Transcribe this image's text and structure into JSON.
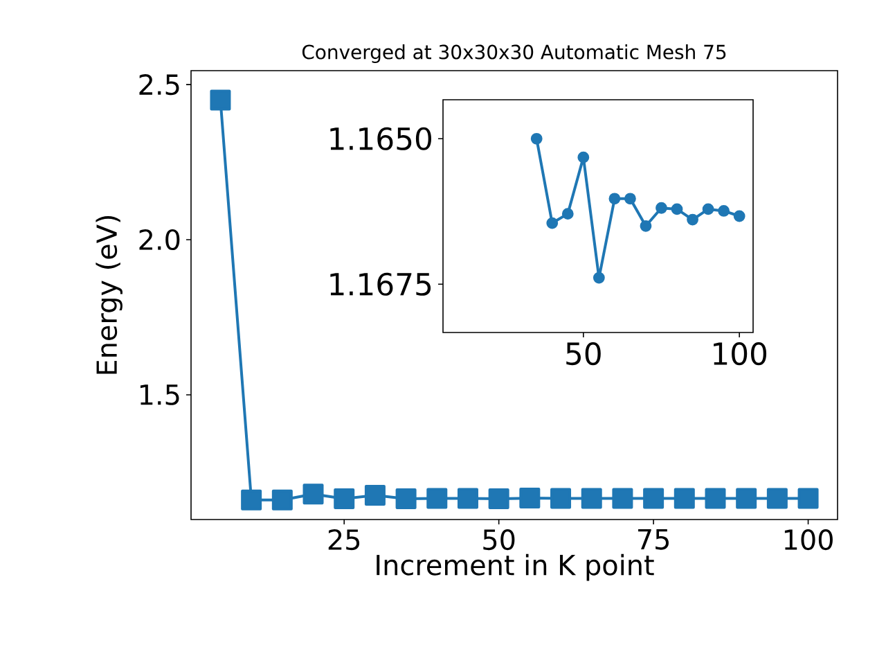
{
  "chart_data": [
    {
      "type": "line",
      "title": "Converged at 30x30x30 Automatic Mesh 75",
      "xlabel": "Increment in K point",
      "ylabel": "Energy (eV)",
      "x": [
        5,
        10,
        15,
        20,
        25,
        30,
        35,
        40,
        45,
        50,
        55,
        60,
        65,
        70,
        75,
        80,
        85,
        90,
        95,
        100
      ],
      "series": [
        {
          "color": "#1f77b4",
          "values": [
            2.45,
            1.161,
            1.161,
            1.18,
            1.165,
            1.176,
            1.165,
            1.166,
            1.166,
            1.165,
            1.167,
            1.166,
            1.166,
            1.166,
            1.166,
            1.166,
            1.166,
            1.166,
            1.166,
            1.166
          ]
        }
      ],
      "xlim": [
        0.25,
        104.75
      ],
      "ylim": [
        1.098,
        2.545
      ],
      "xticks": [
        25,
        50,
        75,
        100
      ],
      "yticks": [
        {
          "value": 1.5,
          "label": "1.5"
        },
        {
          "value": 2.0,
          "label": "2.0"
        },
        {
          "value": 2.5,
          "label": "2.5"
        }
      ],
      "marker": "square",
      "line_style": "solid"
    },
    {
      "type": "line",
      "x": [
        35,
        40,
        45,
        50,
        55,
        60,
        65,
        70,
        75,
        80,
        85,
        90,
        95,
        100
      ],
      "series": [
        {
          "color": "#1f77b4",
          "values": [
            1.165,
            1.16645,
            1.16629,
            1.16532,
            1.16739,
            1.16603,
            1.16603,
            1.1665,
            1.16619,
            1.16621,
            1.16639,
            1.16621,
            1.16624,
            1.16633
          ]
        }
      ],
      "xlim": [
        5,
        104.4
      ],
      "ylim": [
        1.16833,
        1.16433
      ],
      "xticks": [
        50,
        100
      ],
      "yticks": [
        {
          "value": 1.165,
          "label": "1.1650"
        },
        {
          "value": 1.1675,
          "label": "1.1675"
        }
      ],
      "marker": "circle",
      "line_style": "solid"
    }
  ]
}
